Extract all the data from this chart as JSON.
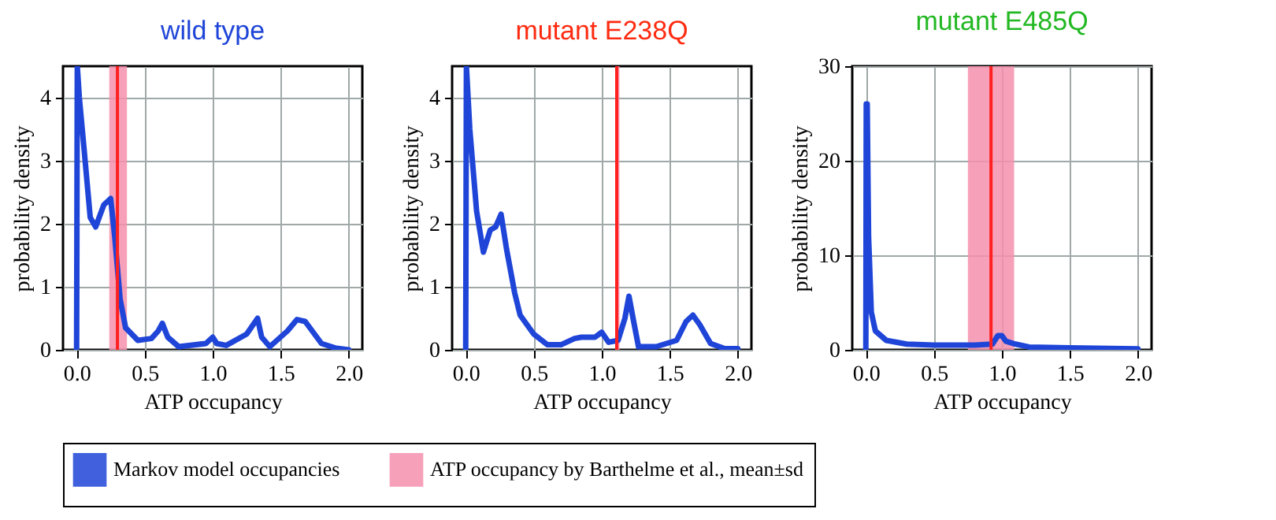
{
  "chart_data": [
    {
      "type": "line",
      "title": "wild type",
      "xlabel": "ATP occupancy",
      "ylabel": "probability density",
      "xlim": [
        -0.1,
        2.1
      ],
      "ylim": [
        0,
        4.5
      ],
      "xticks": [
        {
          "value": 0,
          "label": "0.0"
        },
        {
          "value": 0.5,
          "label": "0.5"
        },
        {
          "value": 1,
          "label": "1.0"
        },
        {
          "value": 1.5,
          "label": "1.5"
        },
        {
          "value": 2,
          "label": "2.0"
        }
      ],
      "yticks": [
        0,
        1,
        2,
        3,
        4
      ],
      "grid": true,
      "legend": "bottom",
      "series": [
        {
          "name": "Markov model occupancies",
          "color": "#1f45d8",
          "x": [
            0,
            0.005,
            0.02,
            0.05,
            0.1,
            0.14,
            0.2,
            0.25,
            0.28,
            0.32,
            0.36,
            0.45,
            0.55,
            0.6,
            0.63,
            0.67,
            0.75,
            0.95,
            1.0,
            1.03,
            1.1,
            1.25,
            1.33,
            1.36,
            1.42,
            1.55,
            1.62,
            1.68,
            1.8,
            1.9,
            2.0
          ],
          "values": [
            0,
            4.5,
            4.0,
            3.3,
            2.1,
            1.95,
            2.3,
            2.4,
            1.8,
            0.8,
            0.35,
            0.15,
            0.18,
            0.3,
            0.42,
            0.2,
            0.05,
            0.1,
            0.2,
            0.1,
            0.07,
            0.25,
            0.5,
            0.2,
            0.05,
            0.3,
            0.48,
            0.45,
            0.1,
            0.03,
            0.0
          ]
        }
      ],
      "bands": [
        {
          "axis": "x",
          "from": 0.24,
          "to": 0.37,
          "label": "ATP occupancy by Barthelme et al., mean±sd",
          "color": "#f590ad"
        }
      ],
      "ref_lines": [
        {
          "axis": "x",
          "value": 0.3,
          "color": "#ff2020"
        }
      ]
    },
    {
      "type": "line",
      "title": "mutant E238Q",
      "xlabel": "ATP occupancy",
      "ylabel": "probability density",
      "xlim": [
        -0.1,
        2.1
      ],
      "ylim": [
        0,
        4.5
      ],
      "xticks": [
        {
          "value": 0,
          "label": "0.0"
        },
        {
          "value": 0.5,
          "label": "0.5"
        },
        {
          "value": 1,
          "label": "1.0"
        },
        {
          "value": 1.5,
          "label": "1.5"
        },
        {
          "value": 2,
          "label": "2.0"
        }
      ],
      "yticks": [
        0,
        1,
        2,
        3,
        4
      ],
      "grid": true,
      "series": [
        {
          "color": "#1f45d8",
          "x": [
            0,
            0.005,
            0.03,
            0.08,
            0.13,
            0.18,
            0.22,
            0.26,
            0.3,
            0.36,
            0.4,
            0.5,
            0.6,
            0.7,
            0.8,
            0.85,
            0.95,
            1.0,
            1.05,
            1.12,
            1.17,
            1.2,
            1.23,
            1.27,
            1.4,
            1.55,
            1.62,
            1.67,
            1.72,
            1.8,
            1.9,
            2.0
          ],
          "values": [
            0,
            4.5,
            3.5,
            2.2,
            1.55,
            1.9,
            1.95,
            2.15,
            1.6,
            0.9,
            0.55,
            0.25,
            0.08,
            0.08,
            0.18,
            0.2,
            0.2,
            0.28,
            0.12,
            0.15,
            0.5,
            0.85,
            0.5,
            0.05,
            0.05,
            0.15,
            0.45,
            0.55,
            0.4,
            0.1,
            0.02,
            0.02
          ]
        }
      ],
      "bands": [
        {
          "axis": "x",
          "from": 1.1,
          "to": 1.13,
          "color": "#f590ad"
        }
      ],
      "ref_lines": [
        {
          "axis": "x",
          "value": 1.11,
          "color": "#ff2020"
        }
      ]
    },
    {
      "type": "line",
      "title": "mutant E485Q",
      "xlabel": "ATP occupancy",
      "ylabel": "probability density",
      "xlim": [
        -0.1,
        2.1
      ],
      "ylim": [
        0,
        30
      ],
      "xticks": [
        {
          "value": 0,
          "label": "0.0"
        },
        {
          "value": 0.5,
          "label": "0.5"
        },
        {
          "value": 1,
          "label": "1.0"
        },
        {
          "value": 1.5,
          "label": "1.5"
        },
        {
          "value": 2,
          "label": "2.0"
        }
      ],
      "yticks": [
        0,
        10,
        20,
        30
      ],
      "grid": true,
      "series": [
        {
          "color": "#1f45d8",
          "x": [
            0,
            0.003,
            0.01,
            0.02,
            0.04,
            0.07,
            0.15,
            0.3,
            0.5,
            0.8,
            0.93,
            0.97,
            1.0,
            1.03,
            1.1,
            1.2,
            1.5,
            2.0
          ],
          "values": [
            0,
            26,
            26,
            12,
            4,
            2,
            1,
            0.6,
            0.5,
            0.5,
            0.6,
            1.5,
            1.5,
            0.9,
            0.6,
            0.3,
            0.2,
            0.1
          ]
        }
      ],
      "bands": [
        {
          "axis": "x",
          "from": 0.75,
          "to": 1.09,
          "color": "#f590ad"
        }
      ],
      "ref_lines": [
        {
          "axis": "x",
          "value": 0.92,
          "color": "#ff2020"
        }
      ]
    }
  ]
}
